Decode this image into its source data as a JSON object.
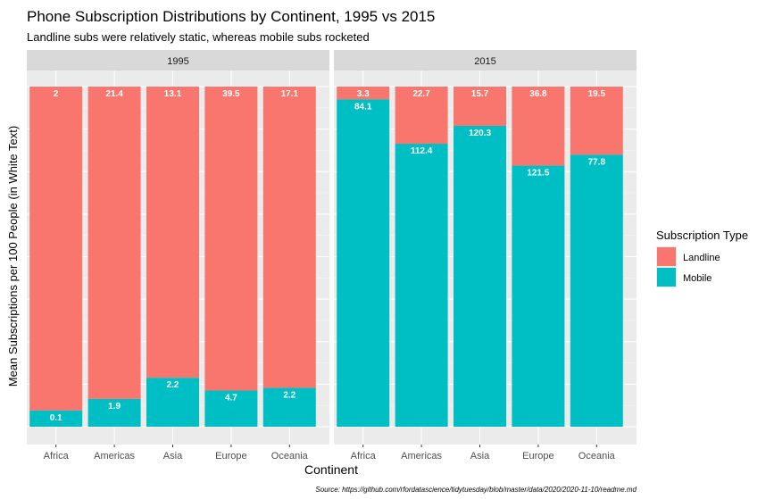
{
  "chart_data": {
    "type": "bar",
    "stacked": "fill",
    "title": "Phone Subscription Distributions by Continent, 1995 vs 2015",
    "subtitle": "Landline subs were relatively static, whereas mobile subs rocketed",
    "xlabel": "Continent",
    "ylabel": "Mean Subscriptions per 100 People (in White Text)",
    "caption": "Source: https://github.com/rfordatascience/tidytuesday/blob/master/data/2020/2020-11-10/readme.md",
    "categories": [
      "Africa",
      "Americas",
      "Asia",
      "Europe",
      "Oceania"
    ],
    "legend": {
      "title": "Subscription Type",
      "position": "right",
      "entries": [
        "Landline",
        "Mobile"
      ]
    },
    "colors": {
      "Landline": "#F8766D",
      "Mobile": "#00BFC4"
    },
    "facets": [
      {
        "label": "1995",
        "series": [
          {
            "name": "Landline",
            "values": [
              2,
              21.4,
              13.1,
              39.5,
              17.1
            ]
          },
          {
            "name": "Mobile",
            "values": [
              0.1,
              1.9,
              2.2,
              4.7,
              2.2
            ]
          }
        ]
      },
      {
        "label": "2015",
        "series": [
          {
            "name": "Landline",
            "values": [
              3.3,
              22.7,
              15.7,
              36.8,
              19.5
            ]
          },
          {
            "name": "Mobile",
            "values": [
              84.1,
              112.4,
              120.3,
              121.5,
              77.8
            ]
          }
        ]
      }
    ]
  }
}
